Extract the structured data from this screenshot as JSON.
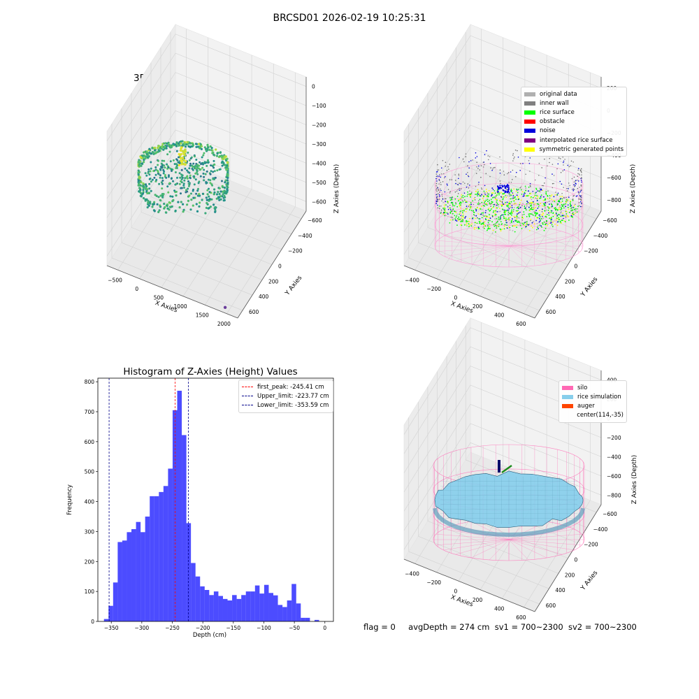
{
  "suptitle": "BRCSD01 2026-02-19 10:25:31",
  "status": {
    "flag": "flag = 0",
    "avg_depth": "avgDepth = 274 cm",
    "sv1": "sv1 = 700~2300",
    "sv2": "sv2 = 700~2300"
  },
  "chart_data": [
    {
      "type": "scatter",
      "panel": "raw",
      "title": "3D Plot of Silo Interior(row data)",
      "xlabel": "X Axies",
      "ylabel": "Y Axies",
      "zlabel": "Z Axies (Depth)",
      "x_ticks": [
        "−500",
        "0",
        "500",
        "1000",
        "1500",
        "2000"
      ],
      "y_ticks": [
        "−600",
        "−400",
        "−200",
        "0",
        "200",
        "400",
        "600"
      ],
      "z_ticks": [
        "0",
        "−100",
        "−200",
        "−300",
        "−400",
        "−500",
        "−600"
      ],
      "xlim": [
        -600,
        2050
      ],
      "ylim": [
        -650,
        650
      ],
      "zlim": [
        -650,
        30
      ],
      "colormap": "viridis",
      "outlier_point": {
        "x": 1850,
        "y": 620,
        "z": -640,
        "color": "#6a3d9a"
      }
    },
    {
      "type": "scatter",
      "panel": "classify",
      "title": "3D classify of Silo Interior",
      "xlabel": "X Axies",
      "ylabel": "Y Axies",
      "zlabel": "Z Axies (Depth)",
      "x_ticks": [
        "−400",
        "−200",
        "0",
        "200",
        "400",
        "600"
      ],
      "y_ticks": [
        "−600",
        "−400",
        "−200",
        "0",
        "200",
        "400",
        "600"
      ],
      "z_ticks": [
        "200",
        "0",
        "−200",
        "−400",
        "−600",
        "−800"
      ],
      "xlim": [
        -550,
        700
      ],
      "ylim": [
        -650,
        650
      ],
      "zlim": [
        -900,
        300
      ],
      "legend": [
        {
          "label": "original data",
          "color": "#b0b0b0"
        },
        {
          "label": "inner wall",
          "color": "#808080"
        },
        {
          "label": "rice surface",
          "color": "#00ff00"
        },
        {
          "label": "obstacle",
          "color": "#ff0000"
        },
        {
          "label": "noise",
          "color": "#0000dd"
        },
        {
          "label": "interpolated rice surface",
          "color": "#800080"
        },
        {
          "label": "symmetric generated points",
          "color": "#ffff00"
        }
      ]
    },
    {
      "type": "bar",
      "panel": "histogram",
      "title": "Histogram of Z-Axies (Height) Values",
      "xlabel": "Depth (cm)",
      "ylabel": "Frequency",
      "xlim": [
        -372,
        14
      ],
      "ylim": [
        0,
        812
      ],
      "bin_start": -362,
      "bin_width": 7.5,
      "values": [
        8,
        52,
        130,
        265,
        270,
        298,
        308,
        332,
        298,
        350,
        418,
        418,
        432,
        452,
        510,
        705,
        770,
        622,
        328,
        195,
        150,
        117,
        105,
        88,
        100,
        85,
        75,
        70,
        88,
        75,
        88,
        100,
        100,
        120,
        93,
        122,
        95,
        87,
        55,
        48,
        70,
        125,
        60,
        12,
        12,
        0,
        5
      ],
      "x_ticks": [
        -350,
        -300,
        -250,
        -200,
        -150,
        -100,
        -50,
        0
      ],
      "y_ticks": [
        0,
        100,
        200,
        300,
        400,
        500,
        600,
        700,
        800
      ],
      "bar_color": "#0000ff",
      "lines": [
        {
          "label": "first_peak: -245.41 cm",
          "value": -245.41,
          "color": "#ff0000"
        },
        {
          "label": "Upper_limit: -223.77 cm",
          "value": -223.77,
          "color": "#00008b"
        },
        {
          "label": "Lower_limit: -353.59 cm",
          "value": -353.59,
          "color": "#00008b"
        }
      ]
    },
    {
      "type": "area",
      "panel": "simulation",
      "title": "3D simulation of Silo Interior",
      "xlabel": "X Axies",
      "ylabel": "Y Axies",
      "zlabel": "Z Axies (Depth)",
      "x_ticks": [
        "−400",
        "−200",
        "0",
        "200",
        "400",
        "600"
      ],
      "y_ticks": [
        "−600",
        "−400",
        "−200",
        "0",
        "200",
        "400",
        "600"
      ],
      "z_ticks": [
        "400",
        "200",
        "0",
        "−200",
        "−400",
        "−600",
        "−800"
      ],
      "xlim": [
        -550,
        700
      ],
      "ylim": [
        -650,
        650
      ],
      "zlim": [
        -900,
        450
      ],
      "legend": [
        {
          "label": "silo",
          "color": "#ff69b4"
        },
        {
          "label": "rice simulation",
          "color": "#87ceeb"
        },
        {
          "label": "auger",
          "color": "#ff4500"
        },
        {
          "label": "center(114,-35)",
          "color": ""
        }
      ]
    }
  ]
}
